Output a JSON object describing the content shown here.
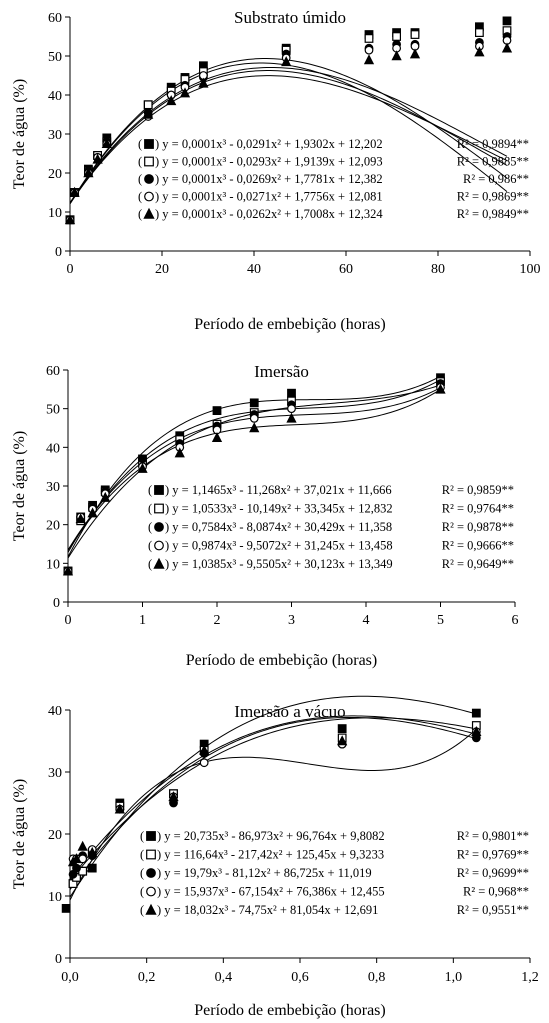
{
  "figure": {
    "ylabel": "Teor de água (%)"
  },
  "chart_data": [
    {
      "type": "scatter",
      "title": "Substrato úmido",
      "xlabel": "Período de embebição (horas)",
      "ylabel": "Teor de água (%)",
      "xlim": [
        0,
        100
      ],
      "ylim": [
        0,
        60
      ],
      "xticks": [
        0,
        20,
        40,
        60,
        80,
        100
      ],
      "yticks": [
        0,
        10,
        20,
        30,
        40,
        50,
        60
      ],
      "xtick_labels": [
        "0",
        "20",
        "40",
        "60",
        "80",
        "100"
      ],
      "ytick_labels": [
        "0",
        "10",
        "20",
        "30",
        "40",
        "50",
        "60"
      ],
      "grid": false,
      "legend_position": "middle-right",
      "series": [
        {
          "marker": "filled-square",
          "x": [
            0,
            1,
            4,
            6,
            8,
            17,
            22,
            25,
            29,
            47,
            65,
            71,
            75,
            89,
            95
          ],
          "y": [
            8,
            15,
            21,
            24.5,
            29,
            37.5,
            42,
            44.5,
            47.5,
            52,
            55.5,
            56,
            56,
            57.5,
            59
          ],
          "fit_coefficients": [
            0.0001,
            -0.0291,
            1.9302,
            12.202
          ],
          "equation_text": "y = 0,0001x³ - 0,0291x² + 1,9302x + 12,202",
          "r2_text": "R² = 0,9894**"
        },
        {
          "marker": "open-square",
          "x": [
            0,
            1,
            4,
            6,
            8,
            17,
            22,
            25,
            29,
            47,
            65,
            71,
            75,
            89,
            95
          ],
          "y": [
            8,
            15,
            20.5,
            24.5,
            28,
            37.5,
            41,
            44,
            46,
            51.5,
            54.5,
            55,
            55.5,
            56,
            56.5
          ],
          "fit_coefficients": [
            0.0001,
            -0.0293,
            1.9139,
            12.093
          ],
          "equation_text": "y = 0,0001x³ - 0,0293x² + 1,9139x + 12,093",
          "r2_text": "R² = 0,9885**"
        },
        {
          "marker": "filled-circle",
          "x": [
            0,
            1,
            4,
            6,
            8,
            17,
            22,
            25,
            29,
            47,
            65,
            71,
            75,
            89,
            95
          ],
          "y": [
            8,
            15,
            20.5,
            24,
            28,
            35.5,
            40,
            42.5,
            44.5,
            50.5,
            52,
            53,
            53,
            53.5,
            55
          ],
          "fit_coefficients": [
            0.0001,
            -0.0269,
            1.7781,
            12.382
          ],
          "equation_text": "y = 0,0001x³ - 0,0269x² + 1,7781x + 12,382",
          "r2_text": "R² = 0,986**"
        },
        {
          "marker": "open-circle",
          "x": [
            0,
            1,
            4,
            6,
            8,
            17,
            22,
            25,
            29,
            47,
            65,
            71,
            75,
            89,
            95
          ],
          "y": [
            8,
            15,
            20,
            24,
            27.5,
            34.5,
            40,
            42,
            45,
            49.5,
            51.5,
            52,
            52.5,
            52.5,
            54
          ],
          "fit_coefficients": [
            0.0001,
            -0.0271,
            1.7756,
            12.081
          ],
          "equation_text": "y = 0,0001x³ - 0,0271x² + 1,7756x + 12,081",
          "r2_text": "R² = 0,9869**"
        },
        {
          "marker": "filled-triangle",
          "x": [
            0,
            1,
            4,
            6,
            8,
            17,
            22,
            25,
            29,
            47,
            65,
            71,
            75,
            89,
            95
          ],
          "y": [
            8,
            15,
            20,
            23.5,
            27.5,
            35,
            38.5,
            40.5,
            43,
            48.5,
            49,
            50,
            50.5,
            51,
            52
          ],
          "fit_coefficients": [
            0.0001,
            -0.0262,
            1.7008,
            12.324
          ],
          "equation_text": "y = 0,0001x³ - 0,0262x² + 1,7008x + 12,324",
          "r2_text": "R² = 0,9849**"
        }
      ]
    },
    {
      "type": "scatter",
      "title": "Imersão",
      "xlabel": "Período de  embebição (horas)",
      "ylabel": "Teor de água (%)",
      "xlim": [
        0,
        6
      ],
      "ylim": [
        0,
        60
      ],
      "xticks": [
        0,
        1,
        2,
        3,
        4,
        5,
        6
      ],
      "yticks": [
        0,
        10,
        20,
        30,
        40,
        50,
        60
      ],
      "xtick_labels": [
        "0",
        "1",
        "2",
        "3",
        "4",
        "5",
        "6"
      ],
      "ytick_labels": [
        "0",
        "10",
        "20",
        "30",
        "40",
        "50",
        "60"
      ],
      "grid": false,
      "legend_position": "bottom-right",
      "series": [
        {
          "marker": "filled-square",
          "x": [
            0,
            0.17,
            0.33,
            0.5,
            1,
            1.5,
            2,
            2.5,
            3,
            5
          ],
          "y": [
            8,
            22,
            25,
            29,
            37,
            43,
            49.5,
            51.5,
            54,
            58
          ],
          "fit_coefficients": [
            1.1465,
            -11.268,
            37.021,
            11.666
          ],
          "equation_text": "y = 1,1465x³ - 11,268x² + 37,021x + 11,666",
          "r2_text": "R² = 0,9859**"
        },
        {
          "marker": "open-square",
          "x": [
            0,
            0.17,
            0.33,
            0.5,
            1,
            1.5,
            2,
            2.5,
            3,
            5
          ],
          "y": [
            8,
            21,
            24.5,
            28.5,
            36,
            42,
            46,
            49,
            52,
            57
          ],
          "fit_coefficients": [
            1.0533,
            -10.149,
            33.345,
            12.832
          ],
          "equation_text": "y = 1,0533x³ - 10,149x² + 33,345x + 12,832",
          "r2_text": "R² = 0,9764**"
        },
        {
          "marker": "filled-circle",
          "x": [
            0,
            0.17,
            0.33,
            0.5,
            1,
            1.5,
            2,
            2.5,
            3,
            5
          ],
          "y": [
            8,
            22,
            24.5,
            28.5,
            37,
            41,
            45.5,
            48.5,
            51,
            56.5
          ],
          "fit_coefficients": [
            0.7584,
            -8.0874,
            30.429,
            11.358
          ],
          "equation_text": "y = 0,7584x³ - 8,0874x² + 30,429x + 11,358",
          "r2_text": "R² = 0,9878**"
        },
        {
          "marker": "open-circle",
          "x": [
            0,
            0.17,
            0.33,
            0.5,
            1,
            1.5,
            2,
            2.5,
            3,
            5
          ],
          "y": [
            8,
            22,
            24,
            28,
            35,
            40,
            44.5,
            47.5,
            50,
            55.5
          ],
          "fit_coefficients": [
            0.9874,
            -9.5072,
            31.245,
            13.458
          ],
          "equation_text": "y = 0,9874x³ - 9,5072x² + 31,245x + 13,458",
          "r2_text": "R² = 0,9666**"
        },
        {
          "marker": "filled-triangle",
          "x": [
            0,
            0.17,
            0.33,
            0.5,
            1,
            1.5,
            2,
            2.5,
            3,
            5
          ],
          "y": [
            8,
            21.5,
            23,
            27,
            34.5,
            38.5,
            42.5,
            45,
            47.5,
            55
          ],
          "fit_coefficients": [
            1.0385,
            -9.5505,
            30.123,
            13.349
          ],
          "equation_text": "y = 1,0385x³ - 9,5505x² + 30,123x + 13,349",
          "r2_text": "R² = 0,9649**"
        }
      ]
    },
    {
      "type": "scatter",
      "title": "Imersão a vácuo",
      "xlabel": "Período de embebição (horas)",
      "ylabel": "Teor de água (%)",
      "xlim": [
        0,
        1.2
      ],
      "ylim": [
        0,
        40
      ],
      "xticks": [
        0,
        0.2,
        0.4,
        0.6,
        0.8,
        1,
        1.2
      ],
      "yticks": [
        0,
        10,
        20,
        30,
        40
      ],
      "xtick_labels": [
        "0,0",
        "0,2",
        "0,4",
        "0,6",
        "0,8",
        "1,0",
        "1,2"
      ],
      "ytick_labels": [
        "0",
        "10",
        "20",
        "30",
        "40"
      ],
      "grid": false,
      "legend_position": "bottom-right",
      "series": [
        {
          "marker": "filled-square",
          "x": [
            -0.01,
            0.008,
            0.017,
            0.033,
            0.058,
            0.13,
            0.27,
            0.35,
            0.71,
            1.06
          ],
          "y": [
            8,
            12,
            13,
            14,
            14.5,
            25,
            26.5,
            34.5,
            37,
            39.5
          ],
          "fit_coefficients": [
            20.735,
            -86.973,
            96.764,
            9.8082
          ],
          "equation_text": "y = 20,735x³ - 86,973x² + 96,764x + 9,8082",
          "r2_text": "R² = 0,9801**"
        },
        {
          "marker": "open-square",
          "x": [
            0.008,
            0.017,
            0.033,
            0.058,
            0.13,
            0.27,
            0.35,
            0.71,
            1.06
          ],
          "y": [
            12,
            13,
            14,
            17,
            24.5,
            26.5,
            33.5,
            35.5,
            37.5
          ],
          "fit_coefficients": [
            116.64,
            -217.42,
            125.45,
            9.3233
          ],
          "equation_text": "y = 116,64x³ - 217,42x² + 125,45x + 9,3233",
          "r2_text": "R² = 0,9769**"
        },
        {
          "marker": "filled-circle",
          "x": [
            0.008,
            0.017,
            0.033,
            0.058,
            0.13,
            0.27,
            0.35,
            0.71,
            1.06
          ],
          "y": [
            13.5,
            14.5,
            16.5,
            16.5,
            24,
            25,
            33,
            34.5,
            35.5
          ],
          "fit_coefficients": [
            19.79,
            -81.12,
            86.725,
            11.019
          ],
          "equation_text": "y = 19,79x³ - 81,12x² + 86,725x + 11,019",
          "r2_text": "R² = 0,9699**"
        },
        {
          "marker": "open-circle",
          "x": [
            0.008,
            0.017,
            0.033,
            0.058,
            0.13,
            0.27,
            0.35,
            0.71,
            1.06
          ],
          "y": [
            16,
            16,
            16,
            17.5,
            24,
            26,
            31.5,
            34.5,
            36.5
          ],
          "fit_coefficients": [
            15.937,
            -67.154,
            76.386,
            12.455
          ],
          "equation_text": "y = 15,937x³ - 67,154x² + 76,386x + 12,455",
          "r2_text": "R² = 0,968**"
        },
        {
          "marker": "filled-triangle",
          "x": [
            0.008,
            0.017,
            0.033,
            0.058,
            0.13,
            0.27,
            0.35,
            0.71,
            1.06
          ],
          "y": [
            15.5,
            16,
            18,
            17,
            24,
            26,
            33.5,
            35,
            36.5
          ],
          "fit_coefficients": [
            18.032,
            -74.75,
            81.054,
            12.691
          ],
          "equation_text": "y = 18,032x³ - 74,75x² + 81,054x + 12,691",
          "r2_text": "R² = 0,9551**"
        }
      ]
    }
  ]
}
